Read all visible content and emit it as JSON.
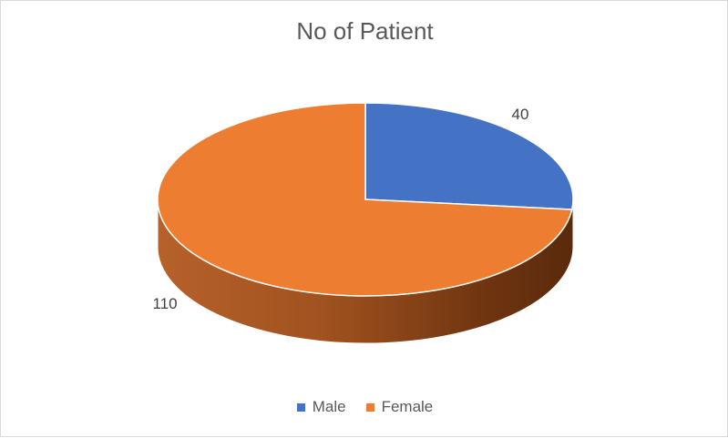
{
  "chart_data": {
    "type": "pie",
    "title": "No of Patient",
    "categories": [
      "Male",
      "Female"
    ],
    "values": [
      40,
      110
    ],
    "colors": [
      "#4472C4",
      "#ED7D31"
    ],
    "data_labels": [
      "40",
      "110"
    ],
    "legend_position": "bottom",
    "style": "3d"
  }
}
